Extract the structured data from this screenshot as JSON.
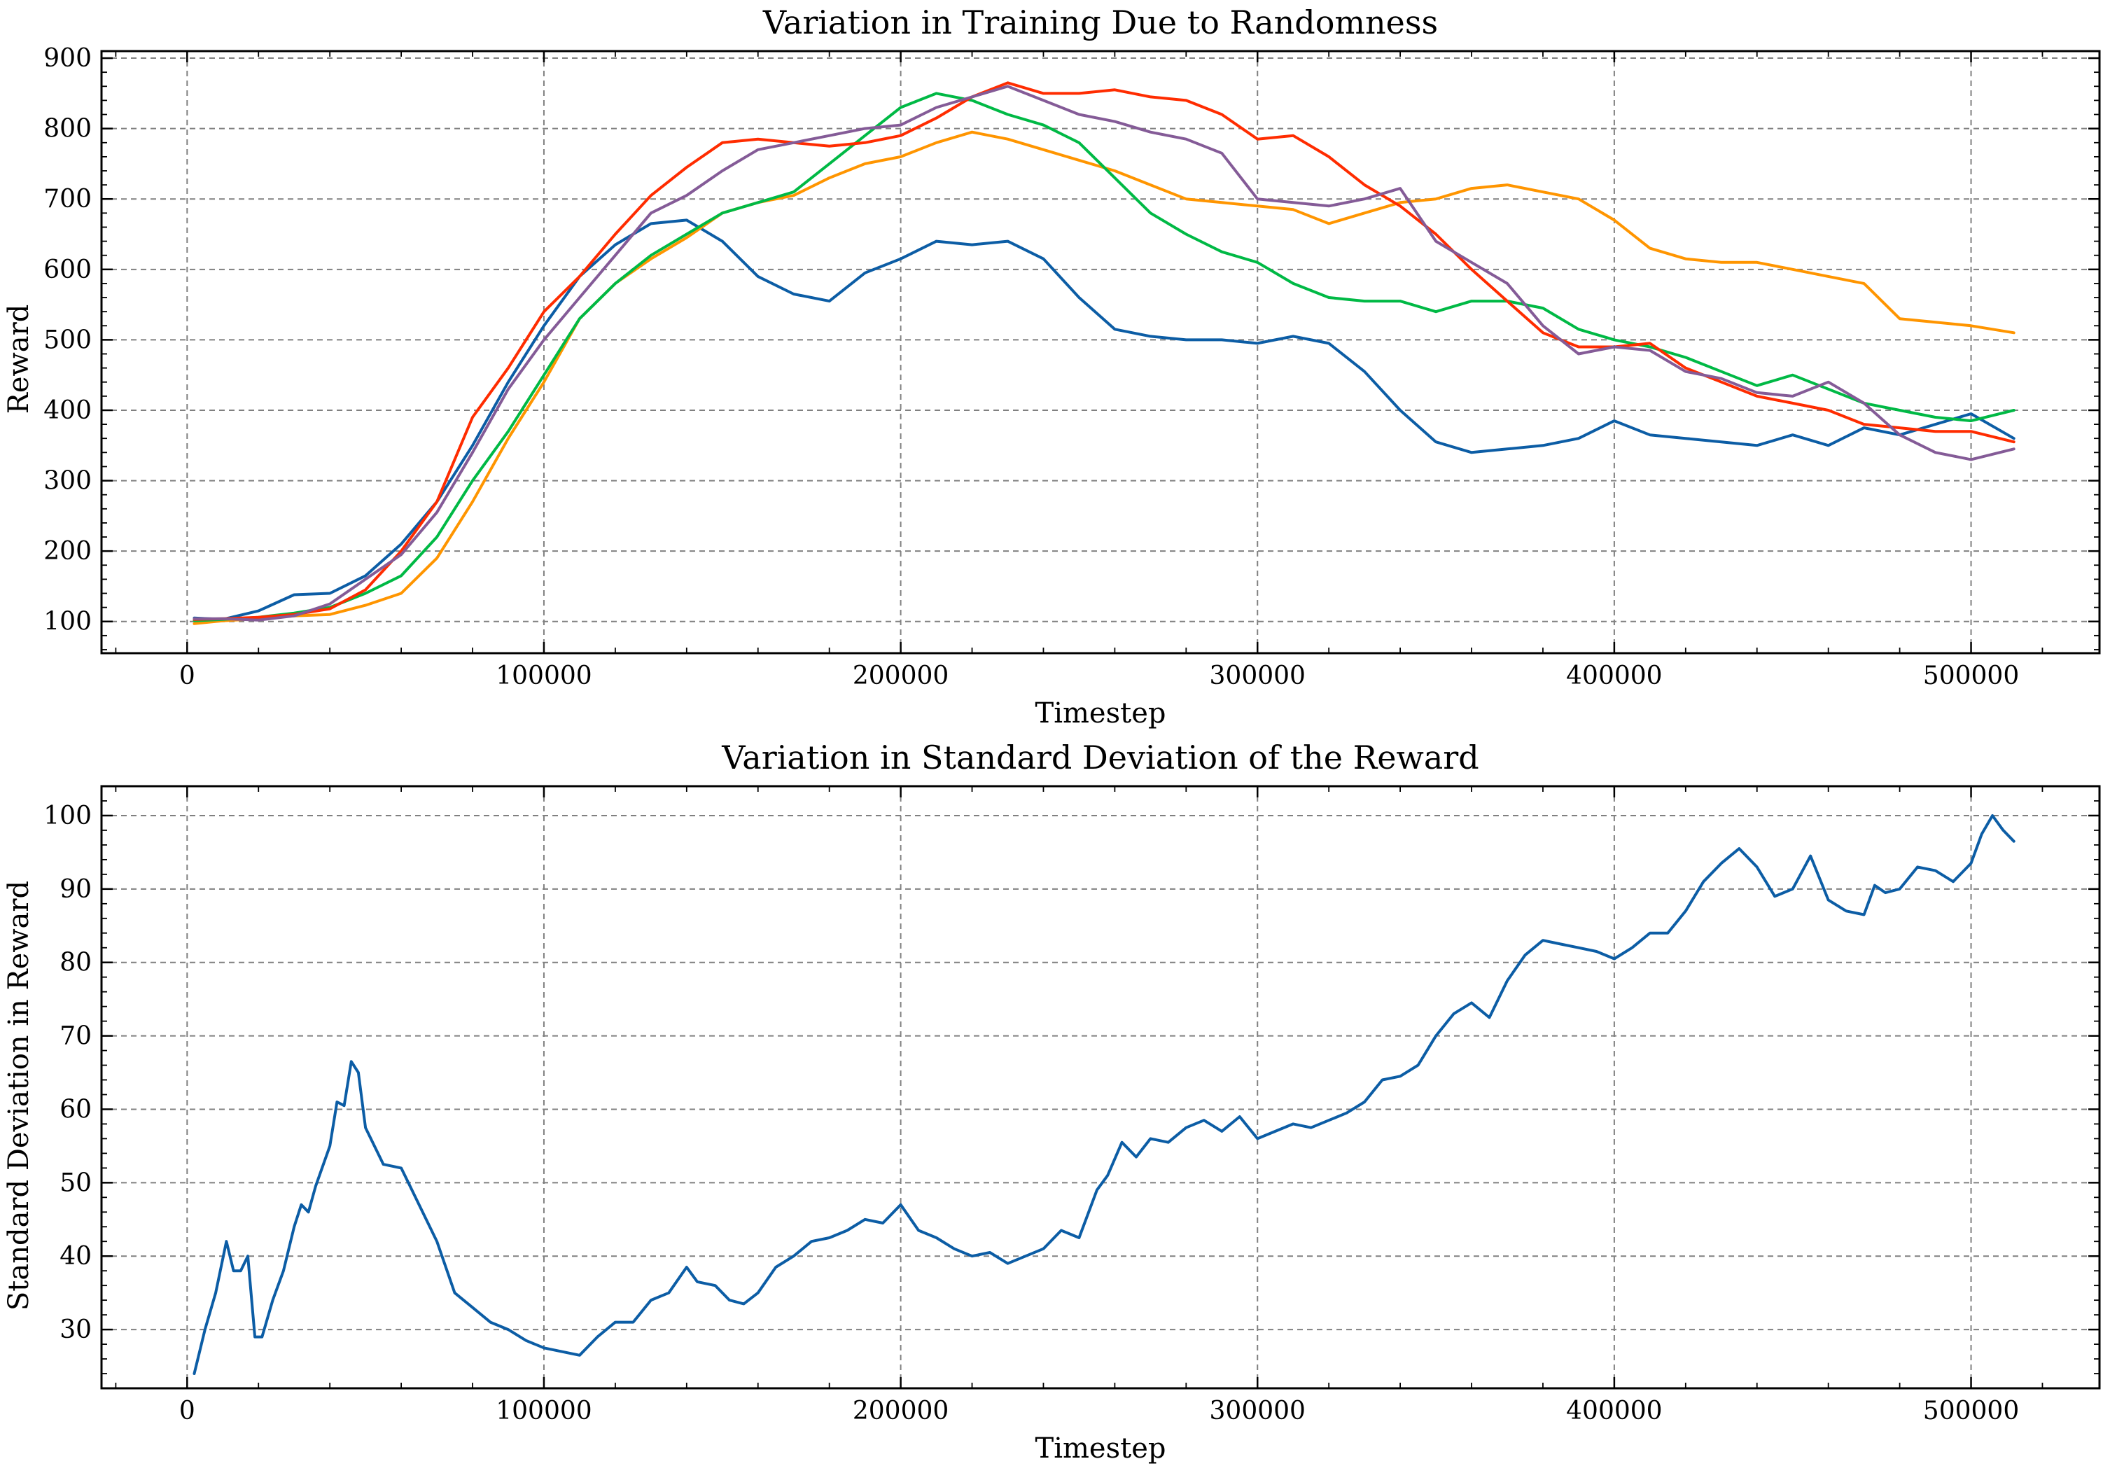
{
  "chart_data": [
    {
      "type": "line",
      "title": "Variation in Training Due to Randomness",
      "xlabel": "Timestep",
      "ylabel": "Reward",
      "xlim": [
        -24000,
        536000
      ],
      "ylim": [
        55,
        910
      ],
      "xticks": [
        0,
        100000,
        200000,
        300000,
        400000,
        500000
      ],
      "xtick_labels": [
        "0",
        "100000",
        "200000",
        "300000",
        "400000",
        "500000"
      ],
      "yticks": [
        100,
        200,
        300,
        400,
        500,
        600,
        700,
        800,
        900
      ],
      "ytick_labels": [
        "100",
        "200",
        "300",
        "400",
        "500",
        "600",
        "700",
        "800",
        "900"
      ],
      "grid": true,
      "legend": "none",
      "x": [
        2000,
        10000,
        20000,
        30000,
        40000,
        50000,
        60000,
        70000,
        80000,
        90000,
        100000,
        110000,
        120000,
        130000,
        140000,
        150000,
        160000,
        170000,
        180000,
        190000,
        200000,
        210000,
        220000,
        230000,
        240000,
        250000,
        260000,
        270000,
        280000,
        290000,
        300000,
        310000,
        320000,
        330000,
        340000,
        350000,
        360000,
        370000,
        380000,
        390000,
        400000,
        410000,
        420000,
        430000,
        440000,
        450000,
        460000,
        470000,
        480000,
        490000,
        500000,
        512000
      ],
      "series": [
        {
          "color": "#0C5DA5",
          "values": [
            105,
            103,
            115,
            138,
            140,
            165,
            210,
            270,
            350,
            440,
            520,
            590,
            635,
            665,
            670,
            640,
            590,
            565,
            555,
            595,
            615,
            640,
            635,
            640,
            615,
            560,
            515,
            505,
            500,
            500,
            495,
            505,
            495,
            455,
            400,
            355,
            340,
            345,
            350,
            360,
            385,
            365,
            360,
            355,
            350,
            365,
            350,
            375,
            365,
            380,
            395,
            360
          ]
        },
        {
          "color": "#FF9500",
          "values": [
            97,
            101,
            104,
            108,
            110,
            123,
            140,
            190,
            270,
            360,
            440,
            530,
            580,
            615,
            645,
            680,
            695,
            705,
            730,
            750,
            760,
            780,
            795,
            785,
            770,
            755,
            740,
            720,
            700,
            695,
            690,
            685,
            665,
            680,
            695,
            700,
            715,
            720,
            710,
            700,
            670,
            630,
            615,
            610,
            610,
            600,
            590,
            580,
            530,
            525,
            520,
            510
          ]
        },
        {
          "color": "#00B945",
          "values": [
            101,
            103,
            106,
            112,
            120,
            140,
            165,
            220,
            300,
            370,
            450,
            530,
            580,
            620,
            650,
            680,
            695,
            710,
            750,
            790,
            830,
            850,
            840,
            820,
            805,
            780,
            730,
            680,
            650,
            625,
            610,
            580,
            560,
            555,
            555,
            540,
            555,
            555,
            545,
            515,
            500,
            490,
            475,
            455,
            435,
            450,
            430,
            410,
            400,
            390,
            385,
            400
          ]
        },
        {
          "color": "#FF2C00",
          "values": [
            103,
            104,
            106,
            110,
            118,
            145,
            200,
            270,
            390,
            460,
            540,
            590,
            650,
            705,
            745,
            780,
            785,
            780,
            775,
            780,
            790,
            815,
            845,
            865,
            850,
            850,
            855,
            845,
            840,
            820,
            785,
            790,
            760,
            720,
            690,
            650,
            600,
            555,
            510,
            490,
            490,
            495,
            460,
            440,
            420,
            410,
            400,
            380,
            375,
            370,
            370,
            355
          ]
        },
        {
          "color": "#845B97",
          "values": [
            104,
            104,
            102,
            108,
            125,
            160,
            195,
            255,
            340,
            430,
            500,
            560,
            620,
            680,
            705,
            740,
            770,
            780,
            790,
            800,
            805,
            830,
            845,
            860,
            840,
            820,
            810,
            795,
            785,
            765,
            700,
            695,
            690,
            700,
            715,
            640,
            610,
            580,
            520,
            480,
            490,
            485,
            455,
            445,
            425,
            420,
            440,
            410,
            365,
            340,
            330,
            345
          ]
        }
      ]
    },
    {
      "type": "line",
      "title": "Variation in Standard Deviation of the Reward",
      "xlabel": "Timestep",
      "ylabel": "Standard Deviation in Reward",
      "xlim": [
        -24000,
        536000
      ],
      "ylim": [
        22,
        104
      ],
      "xticks": [
        0,
        100000,
        200000,
        300000,
        400000,
        500000
      ],
      "xtick_labels": [
        "0",
        "100000",
        "200000",
        "300000",
        "400000",
        "500000"
      ],
      "yticks": [
        30,
        40,
        50,
        60,
        70,
        80,
        90,
        100
      ],
      "ytick_labels": [
        "30",
        "40",
        "50",
        "60",
        "70",
        "80",
        "90",
        "100"
      ],
      "grid": true,
      "legend": "none",
      "x": [
        2000,
        5000,
        8000,
        11000,
        13000,
        15000,
        17000,
        19000,
        21000,
        24000,
        27000,
        30000,
        32000,
        34000,
        36000,
        40000,
        42000,
        44000,
        46000,
        48000,
        50000,
        55000,
        60000,
        62000,
        65000,
        70000,
        75000,
        80000,
        85000,
        90000,
        95000,
        100000,
        105000,
        110000,
        115000,
        120000,
        125000,
        130000,
        135000,
        140000,
        143000,
        148000,
        152000,
        156000,
        160000,
        165000,
        170000,
        175000,
        180000,
        185000,
        190000,
        195000,
        200000,
        205000,
        210000,
        215000,
        220000,
        225000,
        230000,
        235000,
        240000,
        245000,
        250000,
        255000,
        258000,
        262000,
        266000,
        270000,
        275000,
        280000,
        285000,
        290000,
        295000,
        300000,
        305000,
        310000,
        315000,
        320000,
        325000,
        330000,
        335000,
        340000,
        345000,
        350000,
        355000,
        360000,
        365000,
        370000,
        375000,
        380000,
        385000,
        390000,
        395000,
        400000,
        405000,
        410000,
        415000,
        420000,
        425000,
        430000,
        435000,
        440000,
        445000,
        450000,
        455000,
        460000,
        465000,
        470000,
        473000,
        476000,
        480000,
        485000,
        490000,
        495000,
        500000,
        503000,
        506000,
        509000,
        512000
      ],
      "series": [
        {
          "color": "#0C5DA5",
          "values": [
            24,
            30,
            35,
            42,
            38,
            38,
            40,
            29,
            29,
            34,
            38,
            44,
            47,
            46,
            49.5,
            55,
            61,
            60.5,
            66.5,
            65,
            57.5,
            52.5,
            52,
            50,
            47,
            42,
            35,
            33,
            31,
            30,
            28.5,
            27.5,
            27,
            26.5,
            29,
            31,
            31,
            34,
            35,
            38.5,
            36.5,
            36,
            34,
            33.5,
            35,
            38.5,
            40,
            42,
            42.5,
            43.5,
            45,
            44.5,
            47,
            43.5,
            42.5,
            41,
            40,
            40.5,
            39,
            40,
            41,
            43.5,
            42.5,
            49,
            51,
            55.5,
            53.5,
            56,
            55.5,
            57.5,
            58.5,
            57,
            59,
            56,
            57,
            58,
            57.5,
            58.5,
            59.5,
            61,
            64,
            64.5,
            66,
            70,
            73,
            74.5,
            72.5,
            77.5,
            81,
            83,
            82.5,
            82,
            81.5,
            80.5,
            82,
            84,
            84,
            87,
            91,
            93.5,
            95.5,
            93,
            89,
            90,
            94.5,
            88.5,
            87,
            86.5,
            90.5,
            89.5,
            90,
            93,
            92.5,
            91,
            93.5,
            97.5,
            100,
            98,
            96.5
          ]
        }
      ]
    }
  ]
}
